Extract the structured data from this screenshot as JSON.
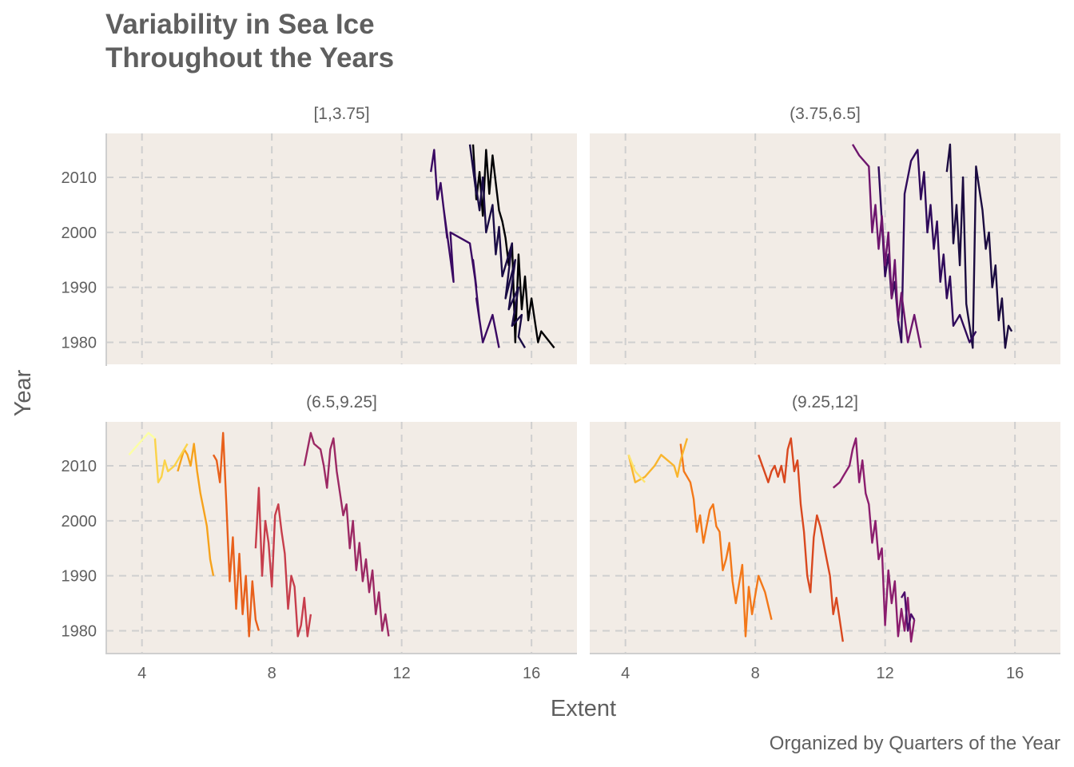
{
  "chart_data": {
    "type": "line",
    "title_lines": [
      "Variability in Sea Ice",
      "Throughout the Years"
    ],
    "caption": "Organized by Quarters of the Year",
    "xlabel": "Extent",
    "ylabel": "Year",
    "xlim": [
      2.9,
      17.4
    ],
    "ylim": [
      1976,
      2018
    ],
    "x_ticks": [
      4,
      8,
      12,
      16
    ],
    "y_ticks": [
      1980,
      1990,
      2000,
      2010
    ],
    "grid": true,
    "legend": "none",
    "facets": [
      {
        "label": "[1,3.75]",
        "series": [
          {
            "month": 1,
            "color": "#000004",
            "x": [
              16.7,
              16.3,
              16.2,
              16.0,
              15.9,
              15.8,
              15.7,
              15.6,
              15.5,
              15.4,
              15.3,
              15.2,
              15.1,
              15.0,
              14.9,
              14.8,
              14.7,
              14.6,
              14.5,
              14.4,
              14.3,
              14.2
            ],
            "y": [
              1979,
              1982,
              1980,
              1988,
              1984,
              1992,
              1986,
              1996,
              1980,
              1998,
              1994,
              1999,
              2002,
              2004,
              2009,
              2014,
              2007,
              2015,
              2003,
              2011,
              2006,
              2016
            ]
          },
          {
            "month": 2,
            "color": "#1a0c45",
            "x": [
              15.8,
              15.6,
              15.7,
              15.4,
              15.6,
              15.3,
              15.5,
              15.2,
              15.4,
              15.1,
              15.0,
              14.9,
              14.8,
              14.6,
              14.5,
              14.4,
              14.3,
              14.2,
              14.3,
              14.1
            ],
            "y": [
              1979,
              1981,
              1985,
              1983,
              1990,
              1986,
              1995,
              1988,
              1998,
              1992,
              2001,
              1996,
              2005,
              2000,
              2010,
              2004,
              2008,
              2013,
              2007,
              2016
            ]
          },
          {
            "month": 3,
            "color": "#3a0963",
            "x": [
              15.0,
              14.8,
              14.5,
              14.3,
              14.4,
              14.2,
              14.3,
              14.1,
              13.8,
              13.5,
              13.6,
              13.3,
              13.4,
              13.2,
              13.1,
              13.0,
              12.9
            ],
            "y": [
              1979,
              1985,
              1980,
              1988,
              1984,
              1995,
              1990,
              1998,
              1999,
              2000,
              1991,
              2004,
              1999,
              2009,
              2006,
              2015,
              2011
            ]
          }
        ]
      },
      {
        "label": "(3.75,6.5]",
        "series": [
          {
            "month": 4,
            "color": "#1b0b40",
            "x": [
              15.9,
              15.8,
              15.7,
              15.6,
              15.5,
              15.4,
              15.3,
              15.2,
              15.1,
              15.0,
              14.9,
              14.8,
              14.7,
              14.6,
              14.5,
              14.4,
              14.3,
              14.2,
              14.1,
              14.0,
              13.9
            ],
            "y": [
              1982,
              1983,
              1979,
              1988,
              1984,
              1994,
              1990,
              2000,
              1997,
              2004,
              2008,
              2012,
              1979,
              1983,
              1987,
              2010,
              1994,
              2005,
              1998,
              2016,
              2011
            ]
          },
          {
            "month": 5,
            "color": "#2f0a5b",
            "x": [
              14.8,
              14.6,
              14.3,
              14.1,
              14.0,
              13.9,
              13.8,
              13.7,
              13.6,
              13.5,
              13.4,
              13.3,
              13.2,
              13.1,
              13.0,
              12.8,
              12.6,
              12.5,
              12.4,
              12.3,
              12.2,
              12.1,
              12.0,
              11.8
            ],
            "y": [
              1982,
              1980,
              1985,
              1983,
              1992,
              1988,
              1996,
              1991,
              2002,
              1997,
              2005,
              2000,
              2011,
              2006,
              2015,
              2013,
              2007,
              1980,
              1984,
              1991,
              1988,
              1996,
              1992,
              2012
            ]
          },
          {
            "month": 6,
            "color": "#6e166e",
            "x": [
              13.1,
              12.9,
              12.7,
              12.5,
              12.4,
              12.3,
              12.2,
              12.1,
              12.0,
              11.9,
              11.8,
              11.7,
              11.6,
              11.5,
              11.2,
              11.0
            ],
            "y": [
              1979,
              1985,
              1980,
              1989,
              1984,
              1995,
              1988,
              2000,
              1994,
              2003,
              1997,
              2005,
              2000,
              2012,
              2014,
              2016
            ]
          }
        ]
      },
      {
        "label": "(6.5,9.25]",
        "series": [
          {
            "month": 7,
            "color": "#9c2964",
            "x": [
              11.6,
              11.5,
              11.4,
              11.3,
              11.2,
              11.1,
              11.0,
              10.9,
              10.8,
              10.7,
              10.6,
              10.5,
              10.4,
              10.3,
              10.2,
              10.1,
              10.0,
              9.9,
              9.8,
              9.7,
              9.6,
              9.5,
              9.3,
              9.2,
              9.0
            ],
            "y": [
              1979,
              1983,
              1980,
              1987,
              1983,
              1991,
              1987,
              1993,
              1989,
              1996,
              1991,
              2000,
              1995,
              2003,
              2001,
              2005,
              2009,
              2015,
              2013,
              2006,
              2010,
              2013,
              2014,
              2016,
              2010
            ]
          },
          {
            "month": 8,
            "color": "#c73e4c",
            "x": [
              9.2,
              9.1,
              9.0,
              8.9,
              8.8,
              8.7,
              8.6,
              8.5,
              8.4,
              8.3,
              8.2,
              8.1,
              8.0,
              7.9,
              7.8,
              7.7,
              7.6,
              7.5
            ],
            "y": [
              1983,
              1979,
              1986,
              1981,
              1979,
              1988,
              1990,
              1984,
              1994,
              1998,
              2003,
              2001,
              1988,
              1996,
              2000,
              1990,
              2006,
              1995
            ]
          },
          {
            "month": 9,
            "color": "#e8601b",
            "x": [
              7.6,
              7.5,
              7.4,
              7.3,
              7.2,
              7.1,
              7.0,
              6.9,
              6.8,
              6.7,
              6.6,
              6.5,
              6.4,
              6.3,
              6.2
            ],
            "y": [
              1980,
              1982,
              1989,
              1979,
              1990,
              1983,
              1994,
              1984,
              1997,
              1989,
              2003,
              2016,
              2007,
              2011,
              2012
            ]
          },
          {
            "month": 10,
            "color": "#f6a21c",
            "x": [
              6.2,
              6.1,
              6.0,
              5.9,
              5.8,
              5.7,
              5.6,
              5.5,
              5.4,
              5.3,
              5.2,
              5.1
            ],
            "y": [
              1990,
              1993,
              1999,
              2002,
              2005,
              2009,
              2014,
              2010,
              2012,
              2013,
              2011,
              2009
            ]
          },
          {
            "month": 11,
            "color": "#fbd34a",
            "x": [
              5.4,
              5.2,
              5.0,
              4.8,
              4.7,
              4.6,
              4.5,
              4.4
            ],
            "y": [
              2014,
              2012,
              2010,
              2009,
              2011,
              2008,
              2007,
              2015
            ]
          },
          {
            "month": 12,
            "color": "#fcffa4",
            "x": [
              4.4,
              4.2,
              3.9,
              3.6
            ],
            "y": [
              2015,
              2016,
              2014,
              2012
            ]
          }
        ]
      },
      {
        "label": "(9.25,12]",
        "series": [
          {
            "month": 10,
            "color": "#d9481f",
            "x": [
              10.7,
              10.6,
              10.5,
              10.4,
              10.3,
              10.2,
              10.1,
              10.0,
              9.9,
              9.8,
              9.7,
              9.6,
              9.5,
              9.4,
              9.3,
              9.2,
              9.1,
              9.0,
              8.9,
              8.8,
              8.7,
              8.6,
              8.5,
              8.4,
              8.1
            ],
            "y": [
              1978,
              1982,
              1986,
              1983,
              1990,
              1993,
              1996,
              1999,
              2001,
              1997,
              1987,
              1990,
              1998,
              2003,
              2011,
              2009,
              2015,
              2013,
              2007,
              2010,
              2008,
              2010,
              2009,
              2007,
              2012
            ]
          },
          {
            "month": 9,
            "color": "#f37819",
            "x": [
              8.5,
              8.3,
              8.1,
              7.9,
              7.8,
              7.7,
              7.6,
              7.4,
              7.3,
              7.2,
              7.1,
              7.0,
              6.9,
              6.8,
              6.7,
              6.6,
              6.5,
              6.4,
              6.3,
              6.2,
              6.1,
              6.0,
              5.9,
              5.8,
              5.7
            ],
            "y": [
              1982,
              1987,
              1990,
              1983,
              1988,
              1979,
              1992,
              1985,
              1989,
              1996,
              1993,
              1991,
              1998,
              1999,
              2003,
              2002,
              1999,
              1996,
              2001,
              1998,
              2004,
              2007,
              2008,
              2009,
              2014
            ]
          },
          {
            "month": 11,
            "color": "#f9b52e",
            "x": [
              5.9,
              5.8,
              5.7,
              5.6,
              5.5,
              5.3,
              5.1,
              4.9,
              4.6,
              4.3,
              4.1
            ],
            "y": [
              2015,
              2013,
              2011,
              2008,
              2010,
              2011,
              2012,
              2010,
              2008,
              2007,
              2012
            ]
          },
          {
            "month": 12,
            "color": "#fde46d",
            "x": [
              4.6,
              4.3,
              4.1
            ],
            "y": [
              2007,
              2009,
              2012
            ]
          },
          {
            "month": 1,
            "color": "#8b1d6e",
            "x": [
              12.9,
              12.8,
              12.7,
              12.6,
              12.5,
              12.4,
              12.3,
              12.2,
              12.1,
              12.0,
              11.9,
              11.8,
              11.7,
              11.6,
              11.5,
              11.4,
              11.3,
              11.2,
              11.1,
              11.0,
              10.9,
              10.8,
              10.7,
              10.6,
              10.4
            ],
            "y": [
              1982,
              1978,
              1986,
              1980,
              1984,
              1979,
              1989,
              1985,
              1991,
              1981,
              1995,
              1993,
              2000,
              1996,
              2003,
              2005,
              2011,
              2007,
              2015,
              2013,
              2010,
              2009,
              2008,
              2007,
              2006
            ]
          },
          {
            "month": 2,
            "color": "#4c0c6b",
            "x": [
              12.9,
              12.8,
              12.7,
              12.6,
              12.5
            ],
            "y": [
              1982,
              1983,
              1980,
              1987,
              1986
            ]
          }
        ]
      }
    ]
  }
}
